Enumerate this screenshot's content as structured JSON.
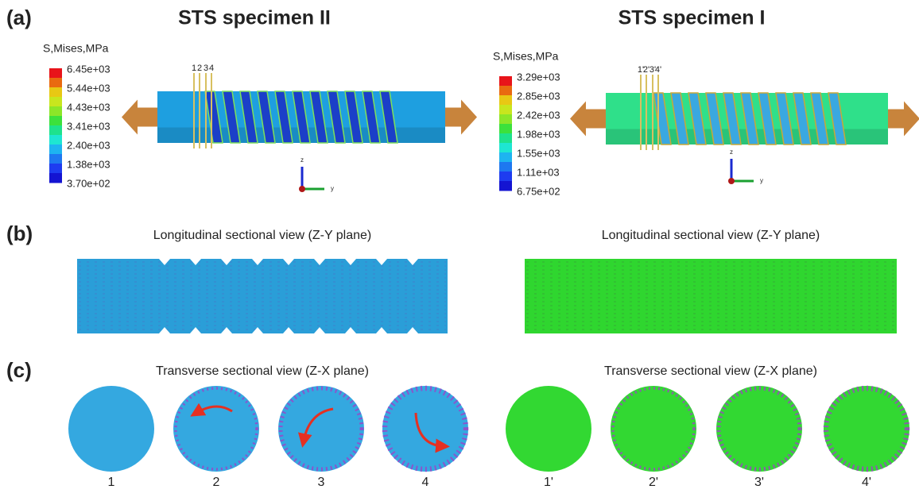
{
  "panel_labels": [
    "(a)",
    "(b)",
    "(c)"
  ],
  "specimens": [
    {
      "title": "STS specimen II",
      "legend_title": "S,Mises,MPa",
      "legend_values": [
        "6.45e+03",
        "5.44e+03",
        "4.43e+03",
        "3.41e+03",
        "2.40e+03",
        "1.38e+03",
        "3.70e+02"
      ],
      "section_labels": [
        "1",
        "2",
        "3",
        "4"
      ],
      "axis_labels": [
        "z",
        "y"
      ],
      "longitudinal_title": "Longitudinal sectional view (Z-Y plane)",
      "transverse_title": "Transverse sectional view (Z-X plane)",
      "cross_sections": [
        "1",
        "2",
        "3",
        "4"
      ]
    },
    {
      "title": "STS specimen I",
      "legend_title": "S,Mises,MPa",
      "legend_values": [
        "3.29e+03",
        "2.85e+03",
        "2.42e+03",
        "1.98e+03",
        "1.55e+03",
        "1.11e+03",
        "6.75e+02"
      ],
      "section_labels": [
        "1'",
        "2'",
        "3'",
        "4'"
      ],
      "axis_labels": [
        "z",
        "y"
      ],
      "longitudinal_title": "Longitudinal sectional view (Z-Y plane)",
      "transverse_title": "Transverse sectional view (Z-X plane)",
      "cross_sections": [
        "1'",
        "2'",
        "3'",
        "4'"
      ]
    }
  ]
}
